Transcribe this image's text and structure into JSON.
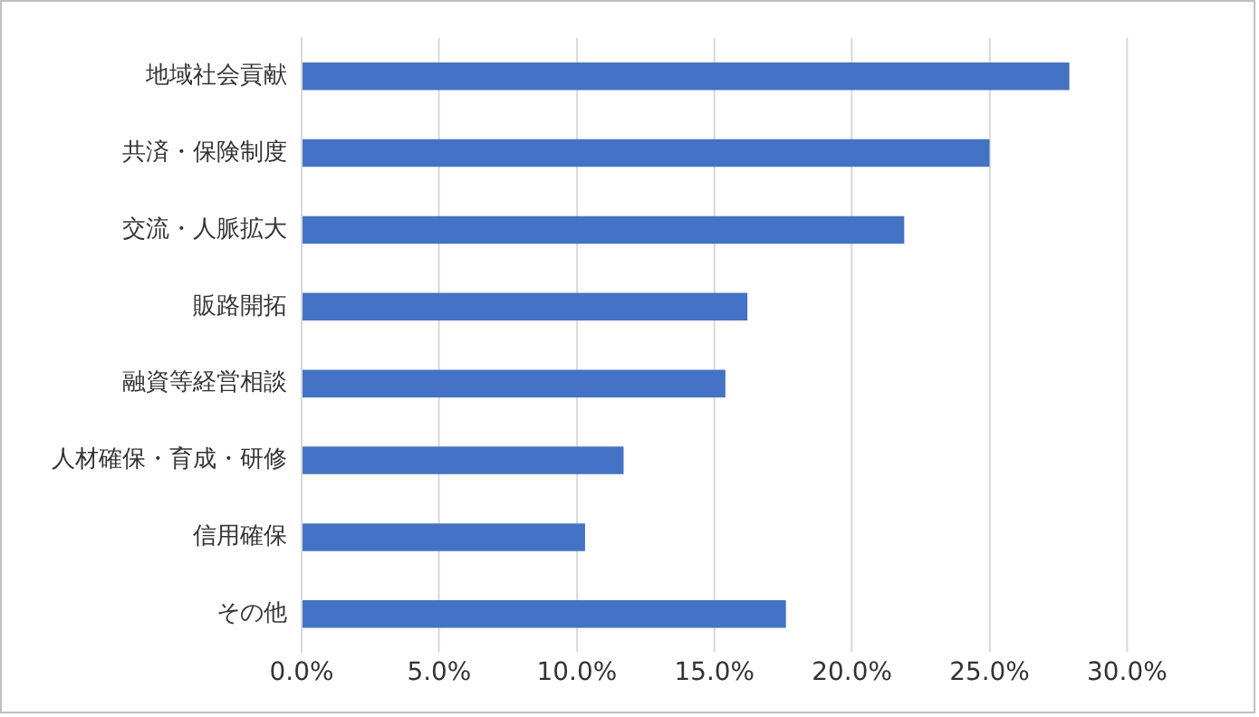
{
  "chart_data": {
    "type": "bar",
    "orientation": "horizontal",
    "categories": [
      "地域社会貢献",
      "共済・保険制度",
      "交流・人脈拡大",
      "販路開拓",
      "融資等経営相談",
      "人材確保・育成・研修",
      "信用確保",
      "その他"
    ],
    "values": [
      27.9,
      25.0,
      21.9,
      16.2,
      15.4,
      11.7,
      10.3,
      17.6
    ],
    "color": "#4472c4",
    "xlim": [
      0,
      30
    ],
    "xticks": [
      {
        "value": 0,
        "label": "0.0%"
      },
      {
        "value": 5,
        "label": "5.0%"
      },
      {
        "value": 10,
        "label": "10.0%"
      },
      {
        "value": 15,
        "label": "15.0%"
      },
      {
        "value": 20,
        "label": "20.0%"
      },
      {
        "value": 25,
        "label": "25.0%"
      },
      {
        "value": 30,
        "label": "30.0%"
      }
    ],
    "grid": "x",
    "legend": false
  }
}
